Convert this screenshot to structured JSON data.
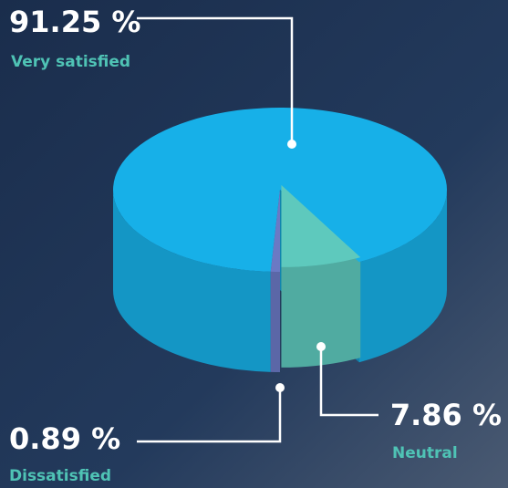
{
  "chart_data": {
    "type": "pie",
    "categories": [
      "Very satisfied",
      "Neutral",
      "Dissatisfied"
    ],
    "values": [
      91.25,
      7.86,
      0.89
    ],
    "value_labels": [
      "91.25 %",
      "7.86 %",
      "0.89 %"
    ],
    "colors": [
      "#17b0e8",
      "#5ec9bd",
      "#6b79c4"
    ]
  }
}
